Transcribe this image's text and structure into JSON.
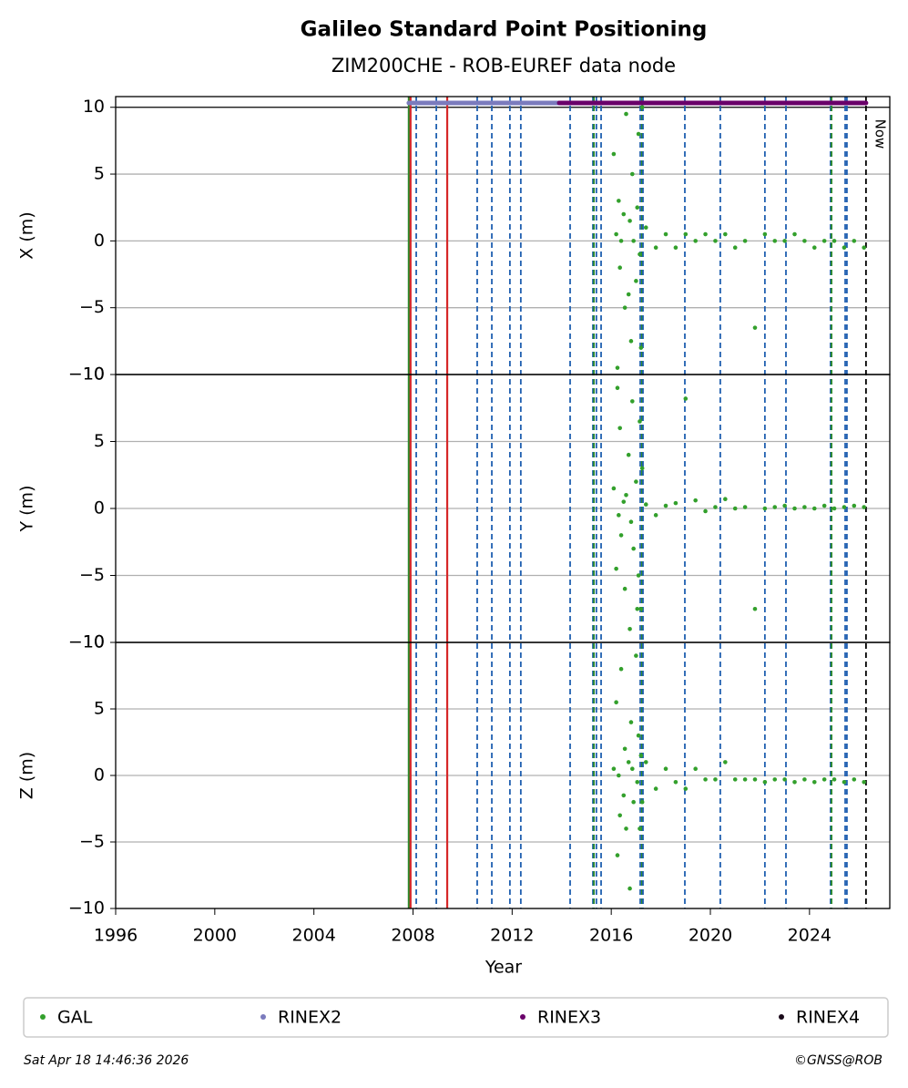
{
  "chart_data": {
    "type": "scatter",
    "title": "Galileo Standard Point Positioning",
    "subtitle": "ZIM200CHE - ROB-EUREF data node",
    "xlabel": "Year",
    "xlim": [
      1996,
      2027.24
    ],
    "xticks": [
      1996,
      2000,
      2004,
      2008,
      2012,
      2016,
      2020,
      2024
    ],
    "annotation": "Now",
    "x": [
      2016.1,
      2016.2,
      2016.25,
      2016.3,
      2016.35,
      2016.4,
      2016.5,
      2016.55,
      2016.6,
      2016.7,
      2016.75,
      2016.8,
      2016.85,
      2016.9,
      2017.0,
      2017.05,
      2017.1,
      2017.15,
      2017.2,
      2017.25,
      2017.4,
      2017.8,
      2018.2,
      2018.6,
      2019.0,
      2019.4,
      2019.8,
      2020.2,
      2020.6,
      2021.0,
      2021.4,
      2021.8,
      2022.2,
      2022.6,
      2023.0,
      2023.4,
      2023.8,
      2024.2,
      2024.6,
      2025.0,
      2025.4,
      2025.8,
      2026.2
    ],
    "panels": [
      {
        "ylabel": "X (m)",
        "ylim": [
          -10,
          10.8
        ],
        "yticks": [
          {
            "value": -10,
            "label": "−10"
          },
          {
            "value": -5,
            "label": "−5"
          },
          0,
          5,
          10
        ],
        "series": [
          {
            "name": "GAL",
            "color": "#33a02c",
            "values": [
              6.5,
              0.5,
              -9.5,
              3,
              -2,
              0,
              2,
              -5,
              9.5,
              -4,
              1.5,
              -7.5,
              5,
              0,
              -3,
              2.5,
              8,
              -1,
              -8,
              10,
              1,
              -0.5,
              0.5,
              -0.5,
              0.5,
              0,
              0.5,
              0,
              0.5,
              -0.5,
              0,
              -6.5,
              0.5,
              0,
              0,
              0.5,
              0,
              -0.5,
              0,
              0,
              -0.5,
              0,
              -0.5
            ]
          }
        ]
      },
      {
        "ylabel": "Y (m)",
        "ylim": [
          -10,
          10
        ],
        "yticks": [
          {
            "value": -10,
            "label": "−10"
          },
          {
            "value": -5,
            "label": "−5"
          },
          0,
          5,
          10
        ],
        "series": [
          {
            "name": "GAL",
            "color": "#33a02c",
            "values": [
              1.5,
              -4.5,
              9,
              -0.5,
              6,
              -2,
              0.5,
              -6,
              1,
              4,
              -9,
              -1,
              8,
              -3,
              2,
              -7.5,
              -5,
              6.5,
              -7.5,
              3,
              0.3,
              -0.5,
              0.2,
              0.4,
              8.2,
              0.6,
              -0.2,
              0.1,
              0.7,
              0,
              0.1,
              -7.5,
              0,
              0.1,
              0.2,
              0,
              0.1,
              0,
              0.2,
              0,
              0.1,
              0.2,
              0.1
            ]
          }
        ]
      },
      {
        "ylabel": "Z (m)",
        "ylim": [
          -10,
          10
        ],
        "yticks": [
          {
            "value": -10,
            "label": "−10"
          },
          {
            "value": -5,
            "label": "−5"
          },
          0,
          5,
          10
        ],
        "series": [
          {
            "name": "GAL",
            "color": "#33a02c",
            "values": [
              0.5,
              5.5,
              -6,
              0,
              -3,
              8,
              -1.5,
              2,
              -4,
              1,
              -8.5,
              4,
              0.5,
              -2,
              9,
              -0.5,
              3,
              -4,
              1.5,
              -2,
              1,
              -1,
              0.5,
              -0.5,
              -1,
              0.5,
              -0.3,
              -0.3,
              1,
              -0.3,
              -0.3,
              -0.3,
              -0.5,
              -0.3,
              -0.3,
              -0.5,
              -0.3,
              -0.5,
              -0.3,
              -0.3,
              -0.5,
              -0.3,
              -0.5
            ]
          }
        ]
      }
    ],
    "rinex": [
      {
        "name": "RINEX2",
        "color": "#7b7bbd",
        "start": 2007.83,
        "end": 2013.9
      },
      {
        "name": "RINEX3",
        "color": "#6a006a",
        "start": 2013.9,
        "end": 2026.28
      },
      {
        "name": "RINEX4",
        "color": "#1a0a1a"
      }
    ],
    "events": [
      {
        "x": 2007.83,
        "color": "#2a8a2a",
        "style": "solid"
      },
      {
        "x": 2007.9,
        "color": "#d62728",
        "style": "solid"
      },
      {
        "x": 2009.38,
        "color": "#d62728",
        "style": "solid"
      },
      {
        "x": 2008.13,
        "color": "#1f5fb0",
        "style": "dashed"
      },
      {
        "x": 2008.94,
        "color": "#1f5fb0",
        "style": "dashed"
      },
      {
        "x": 2010.59,
        "color": "#1f5fb0",
        "style": "dashed"
      },
      {
        "x": 2011.18,
        "color": "#1f5fb0",
        "style": "dashed"
      },
      {
        "x": 2011.91,
        "color": "#1f5fb0",
        "style": "dashed"
      },
      {
        "x": 2012.35,
        "color": "#1f5fb0",
        "style": "dashed"
      },
      {
        "x": 2014.34,
        "color": "#1f5fb0",
        "style": "dashed"
      },
      {
        "x": 2015.26,
        "color": "#1f5fb0",
        "style": "dashed"
      },
      {
        "x": 2015.3,
        "color": "#2a8a2a",
        "style": "dashed"
      },
      {
        "x": 2015.4,
        "color": "#1f5fb0",
        "style": "dashed"
      },
      {
        "x": 2015.59,
        "color": "#1f5fb0",
        "style": "dashed"
      },
      {
        "x": 2017.17,
        "color": "#1f5fb0",
        "style": "dashed"
      },
      {
        "x": 2017.24,
        "color": "#2a8a2a",
        "style": "dashed"
      },
      {
        "x": 2017.28,
        "color": "#1f5fb0",
        "style": "dashed"
      },
      {
        "x": 2018.97,
        "color": "#1f5fb0",
        "style": "dashed"
      },
      {
        "x": 2020.4,
        "color": "#1f5fb0",
        "style": "dashed"
      },
      {
        "x": 2022.2,
        "color": "#1f5fb0",
        "style": "dashed"
      },
      {
        "x": 2023.05,
        "color": "#1f5fb0",
        "style": "dashed"
      },
      {
        "x": 2024.85,
        "color": "#1f5fb0",
        "style": "dashed"
      },
      {
        "x": 2024.89,
        "color": "#2a8a2a",
        "style": "dashed"
      },
      {
        "x": 2025.44,
        "color": "#1f5fb0",
        "style": "dashed"
      },
      {
        "x": 2025.51,
        "color": "#1f5fb0",
        "style": "dashed"
      },
      {
        "x": 2026.28,
        "color": "#000000",
        "style": "dashed"
      }
    ],
    "timestamp": "Sat Apr 18 14:46:36 2026",
    "credit": "©GNSS@ROB"
  }
}
